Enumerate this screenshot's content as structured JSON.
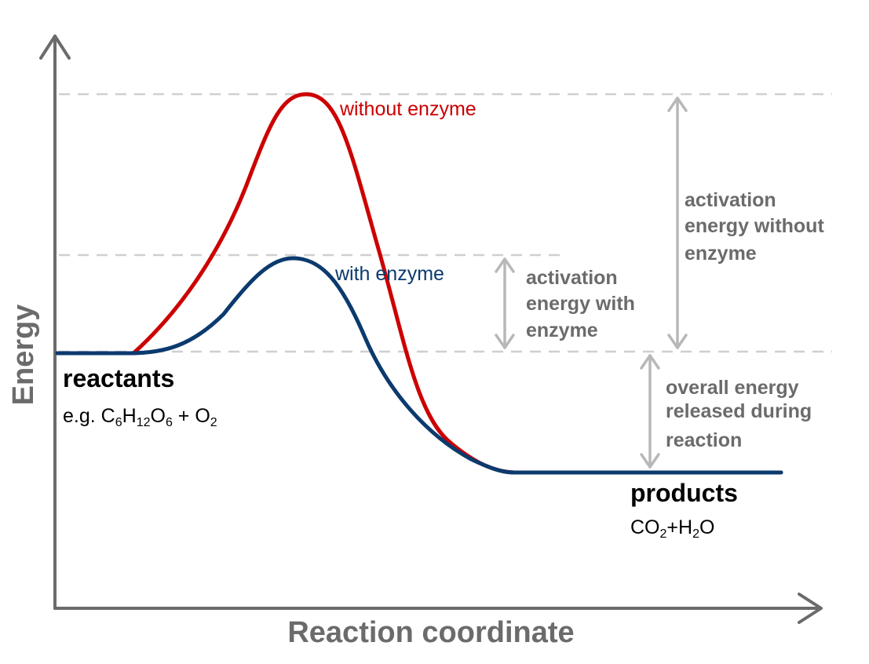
{
  "axes": {
    "x_label": "Reaction coordinate",
    "y_label": "Energy"
  },
  "curves": {
    "without_enzyme": {
      "label": "without enzyme",
      "color": "#cc0000"
    },
    "with_enzyme": {
      "label": "with enzyme",
      "color": "#0b3a6e"
    }
  },
  "annotations": {
    "activation_with": [
      "activation",
      "energy with",
      "enzyme"
    ],
    "activation_without": [
      "activation",
      "energy without",
      "enzyme"
    ],
    "overall_released": [
      "overall energy",
      "released during",
      "reaction"
    ]
  },
  "reactants": {
    "title": "reactants",
    "formula": {
      "prefix": "e.g. ",
      "c": "C",
      "c_sub": "6",
      "h": "H",
      "h_sub": "12",
      "o": "O",
      "o_sub": "6",
      "plus": " + ",
      "o2": "O",
      "o2_sub": "2"
    }
  },
  "products": {
    "title": "products",
    "formula": {
      "co": "CO",
      "co_sub": "2",
      "plus": "+",
      "h": "H",
      "h_sub": "2",
      "o": "O"
    }
  },
  "colors": {
    "axis": "#6b6b6b",
    "guide": "#cfcfcf",
    "arrow": "#b8b8b8"
  }
}
